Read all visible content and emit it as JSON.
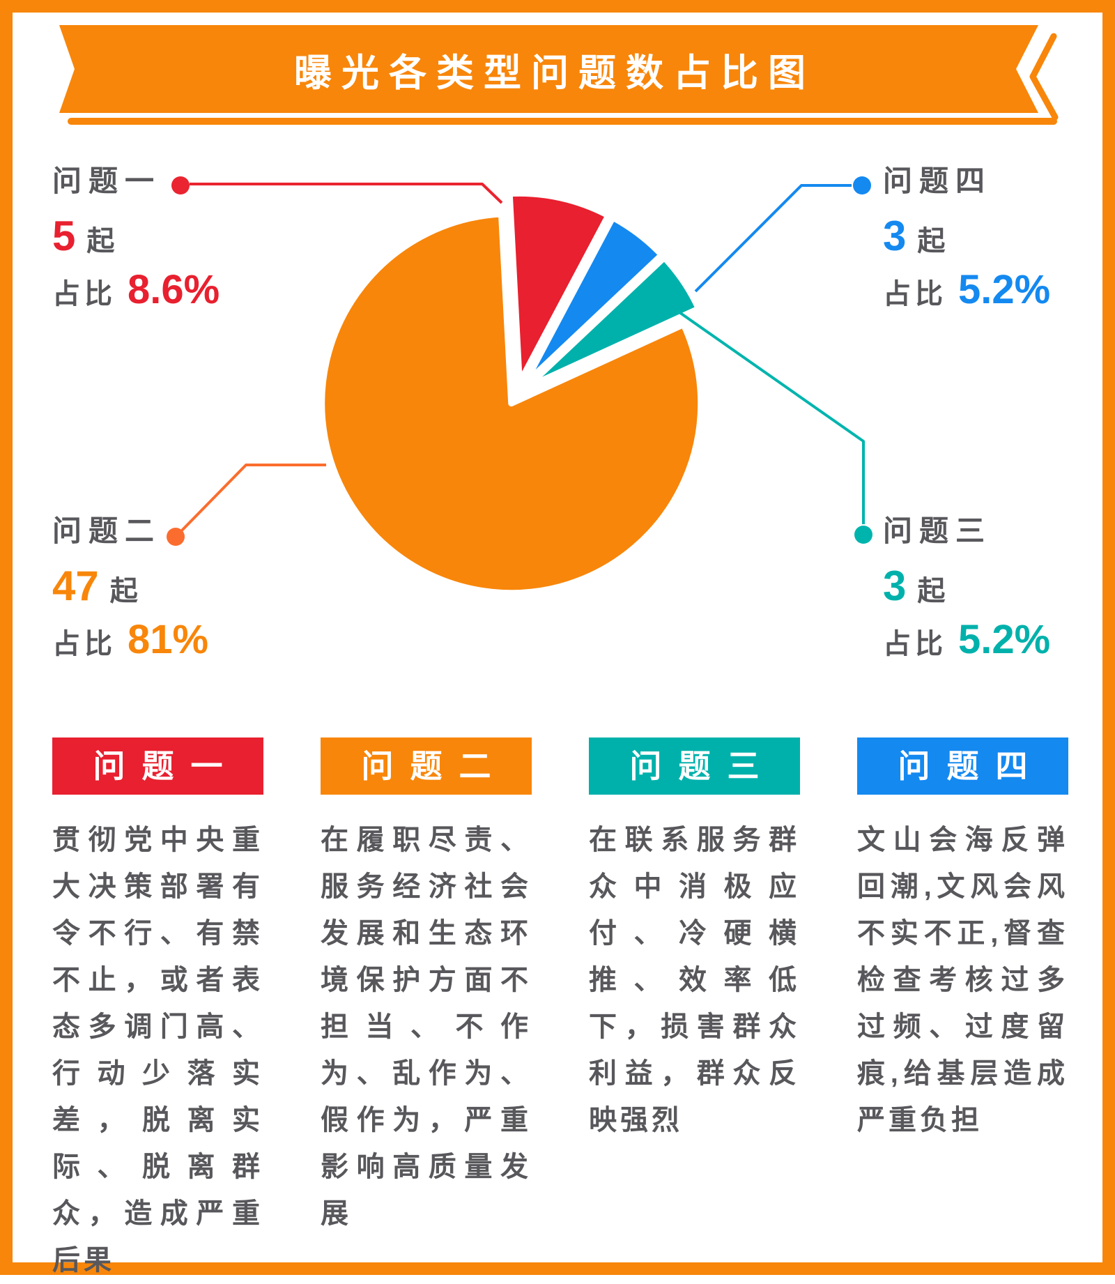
{
  "page": {
    "title": "曝光各类型问题数占比图"
  },
  "chart_data": {
    "type": "pie",
    "title": "曝光各类型问题数占比图",
    "unit": "起",
    "clockwise": true,
    "start_angle_deg": -3,
    "exploded": true,
    "slices": [
      {
        "label": "问题一",
        "count": 5,
        "pct": 8.6,
        "color": "#e8202f"
      },
      {
        "label": "问题四",
        "count": 3,
        "pct": 5.2,
        "color": "#1489f0"
      },
      {
        "label": "问题三",
        "count": 3,
        "pct": 5.2,
        "color": "#00b1ab"
      },
      {
        "label": "问题二",
        "count": 47,
        "pct": 81,
        "color": "#f8860a"
      }
    ]
  },
  "colors": {
    "accent_orange": "#f8860a",
    "red": "#e8202f",
    "blue": "#1489f0",
    "teal": "#00b1ab",
    "text_gray": "#58585c"
  },
  "callouts": {
    "p1": {
      "title": "问题一",
      "count": "5",
      "unit": "起",
      "pct_prefix": "占比",
      "pct": "8.6%",
      "color": "#e8202f",
      "leader_color": "#ea2430"
    },
    "p2": {
      "title": "问题二",
      "count": "47",
      "unit": "起",
      "pct_prefix": "占比",
      "pct": "81%",
      "color": "#f8860a",
      "leader_color": "#fb6d2e"
    },
    "p3": {
      "title": "问题三",
      "count": "3",
      "unit": "起",
      "pct_prefix": "占比",
      "pct": "5.2%",
      "color": "#00b1ab",
      "leader_color": "#00b4ae"
    },
    "p4": {
      "title": "问题四",
      "count": "3",
      "unit": "起",
      "pct_prefix": "占比",
      "pct": "5.2%",
      "color": "#1489f0",
      "leader_color": "#1489f0"
    }
  },
  "cards": [
    {
      "header": "问题一",
      "color": "#e8202f",
      "body": "贯彻党中央重大决策部署有令不行、有禁不止，或者表态多调门高、行动少落实差，脱离实际、脱离群众，造成严重后果"
    },
    {
      "header": "问题二",
      "color": "#f8860a",
      "body": "在履职尽责、服务经济社会发展和生态环境保护方面不担当、不作为、乱作为、假作为，严重影响高质量发展"
    },
    {
      "header": "问题三",
      "color": "#00b1ab",
      "body": "在联系服务群众中消极应付、冷硬横推、效率低下，损害群众利益，群众反映强烈"
    },
    {
      "header": "问题四",
      "color": "#1489f0",
      "body": "文山会海反弹回潮,文风会风不实不正,督查检查考核过多过频、过度留痕,给基层造成严重负担"
    }
  ]
}
